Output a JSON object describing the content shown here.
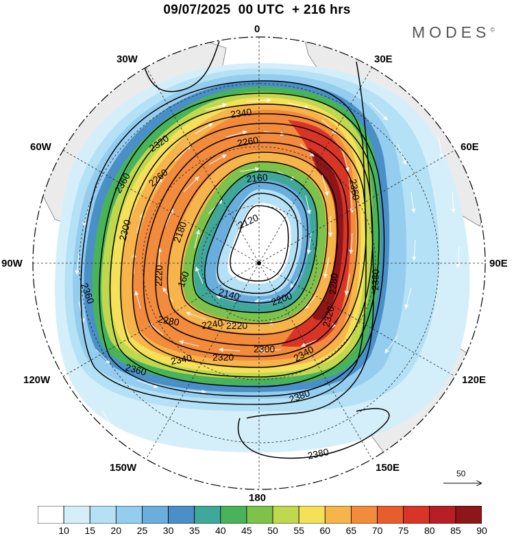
{
  "header": {
    "title": "09/07/2025  00 UTC  + 216 hrs",
    "brand": "MODES",
    "brand_mark": "©"
  },
  "longitude_labels": {
    "top": "0",
    "bottom": "180",
    "left": "90W",
    "right": "90E",
    "upper_left_1": "30W",
    "upper_left_2": "60W",
    "lower_left_1": "120W",
    "lower_left_2": "150W",
    "upper_right_1": "30E",
    "upper_right_2": "60E",
    "lower_right_1": "120E",
    "lower_right_2": "150E"
  },
  "vector_scale": {
    "value": "50"
  },
  "colorbar": {
    "ticks": [
      "10",
      "15",
      "20",
      "25",
      "30",
      "35",
      "40",
      "45",
      "50",
      "55",
      "60",
      "65",
      "70",
      "75",
      "80",
      "85",
      "90"
    ],
    "colors": [
      "#ffffff",
      "#d4effa",
      "#b4e1f5",
      "#94cdee",
      "#6aaedd",
      "#4a8fc7",
      "#3fa89a",
      "#48b35a",
      "#7dc24a",
      "#bfd84e",
      "#f5e05a",
      "#f7b44a",
      "#f28b3c",
      "#e85d2e",
      "#d93527",
      "#b71f24",
      "#8e1518"
    ]
  },
  "contour_labels": [
    "2120",
    "2140",
    "2160",
    "2180",
    "2200",
    "2220",
    "2240",
    "2260",
    "2280",
    "2300",
    "2320",
    "2340",
    "2360",
    "2380"
  ]
}
